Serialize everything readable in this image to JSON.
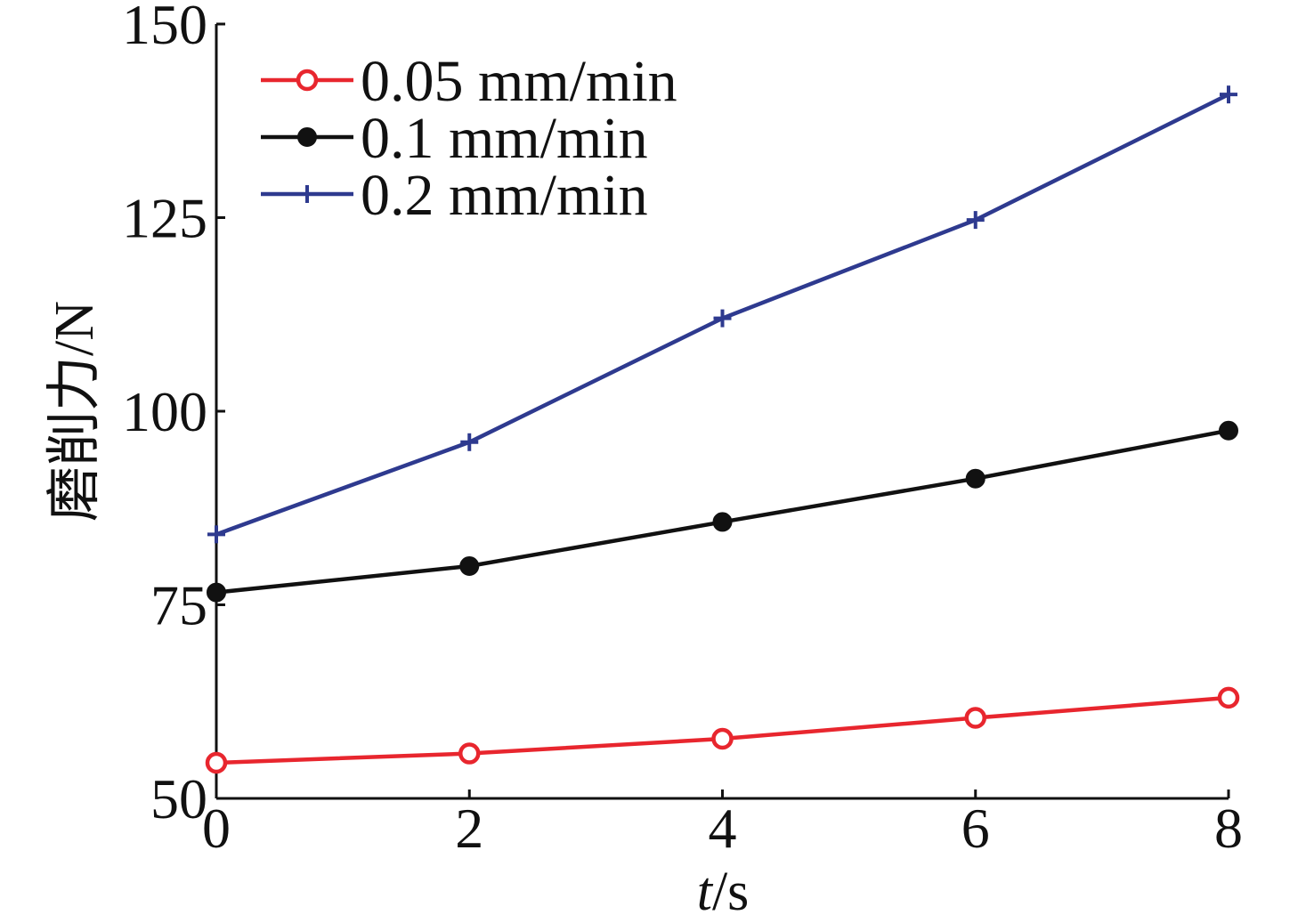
{
  "chart_data": {
    "type": "line",
    "xlabel": {
      "var": "t",
      "unit": "/s"
    },
    "ylabel": "磨削力/N",
    "x": [
      0,
      2,
      4,
      6,
      8
    ],
    "xticks": [
      "0",
      "2",
      "4",
      "6",
      "8"
    ],
    "yticks": [
      "50",
      "75",
      "100",
      "125",
      "150"
    ],
    "xlim": [
      0,
      8
    ],
    "ylim": [
      50,
      150
    ],
    "grid": false,
    "legend_position": "top-left",
    "series": [
      {
        "name": "0.05 mm/min",
        "color": "#e8262e",
        "marker": "open-circle",
        "values": [
          54.6,
          55.8,
          57.7,
          60.4,
          63.0
        ]
      },
      {
        "name": "0.1 mm/min",
        "color": "#111111",
        "marker": "filled-circle",
        "values": [
          76.6,
          80.0,
          85.7,
          91.3,
          97.5
        ]
      },
      {
        "name": "0.2 mm/min",
        "color": "#2e3a8f",
        "marker": "plus",
        "values": [
          84.1,
          96.0,
          112.0,
          124.7,
          140.9
        ]
      }
    ]
  }
}
